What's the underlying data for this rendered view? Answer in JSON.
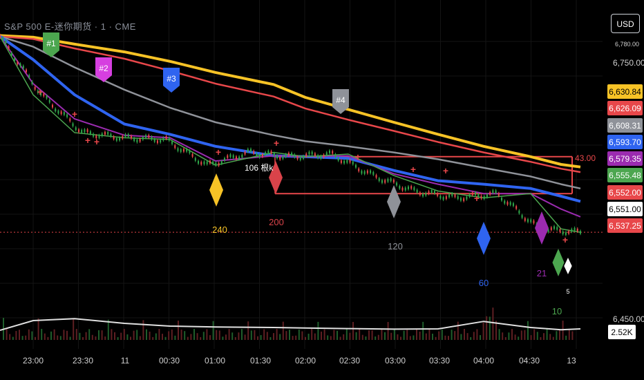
{
  "header": {
    "title": "S&P 500 E-迷你期货 · 1 · CME",
    "currency_button": "USD"
  },
  "axis_labels": {
    "top_tiny": "6,780.00",
    "p6750": "6,750.00",
    "p6450": "6,450.00"
  },
  "price_badges": [
    {
      "text": "6,630.84",
      "bg": "#f7c326",
      "fg": "#000000"
    },
    {
      "text": "6,626.09",
      "bg": "#e8474a",
      "fg": "#ffffff"
    },
    {
      "text": "6,608.31",
      "bg": "#8f9299",
      "fg": "#ffffff"
    },
    {
      "text": "6,593.70",
      "bg": "#2f64f0",
      "fg": "#ffffff"
    },
    {
      "text": "6,579.35",
      "bg": "#9b2bb0",
      "fg": "#ffffff"
    },
    {
      "text": "6,555.48",
      "bg": "#4ca64f",
      "fg": "#ffffff"
    },
    {
      "text": "6,552.00",
      "bg": "#e8474a",
      "fg": "#ffffff"
    },
    {
      "text": "6,551.00",
      "bg": "#ffffff",
      "fg": "#000000"
    },
    {
      "text": "6,537.25",
      "bg": "#e8474a",
      "fg": "#ffffff"
    }
  ],
  "volume_badge": "2.52K",
  "time_labels": [
    "23:00",
    "23:30",
    "11",
    "00:30",
    "01:00",
    "01:30",
    "02:00",
    "02:30",
    "03:00",
    "03:30",
    "04:00",
    "04:30",
    "13"
  ],
  "flags": [
    {
      "text": "#1",
      "color": "#4ca64f"
    },
    {
      "text": "#2",
      "color": "#d63fe0"
    },
    {
      "text": "#3",
      "color": "#2f64f0"
    },
    {
      "text": "#4",
      "color": "#8f9299"
    }
  ],
  "diamonds": [
    {
      "text": "240",
      "color": "#f7c326"
    },
    {
      "text": "200",
      "color": "#d9434a"
    },
    {
      "text": "120",
      "color": "#8f9299"
    },
    {
      "text": "60",
      "color": "#2f64f0"
    },
    {
      "text": "21",
      "color": "#9b2bb0"
    },
    {
      "text": "10",
      "color": "#4ca64f"
    },
    {
      "text": "5",
      "color": "#ffffff"
    }
  ],
  "annotations": {
    "bars_count": "106 根k",
    "range_value": "43.00"
  },
  "chart_data": {
    "type": "line",
    "x": [
      "22:50",
      "23:00",
      "23:30",
      "00:00",
      "00:30",
      "01:00",
      "01:30",
      "02:00",
      "02:30",
      "03:00",
      "03:30",
      "04:00",
      "04:30",
      "04:50",
      "05:00"
    ],
    "ylim": [
      6440,
      6790
    ],
    "series": [
      {
        "color": "#f7c326",
        "values": [
          6781,
          6779,
          6771,
          6762,
          6751,
          6738,
          6724,
          6709,
          6695,
          6680,
          6666,
          6652,
          6640,
          6631,
          6628
        ]
      },
      {
        "color": "#e8474a",
        "values": [
          6780,
          6777,
          6766,
          6754,
          6740,
          6725,
          6710,
          6696,
          6683,
          6670,
          6657,
          6645,
          6634,
          6626,
          6622
        ]
      },
      {
        "color": "#8f9299",
        "values": [
          6780,
          6768,
          6744,
          6718,
          6697,
          6680,
          6665,
          6658,
          6652,
          6645,
          6637,
          6627,
          6617,
          6608,
          6603
        ]
      },
      {
        "color": "#2f64f0",
        "values": [
          6780,
          6753,
          6712,
          6678,
          6666,
          6652,
          6641,
          6640,
          6638,
          6624,
          6612,
          6608,
          6603,
          6594,
          6588
        ]
      },
      {
        "color": "#9b2bb0",
        "values": [
          6780,
          6725,
          6684,
          6665,
          6662,
          6635,
          6641,
          6640,
          6641,
          6620,
          6608,
          6597,
          6597,
          6579,
          6570
        ]
      },
      {
        "color": "#4ca64f",
        "values": [
          6780,
          6712,
          6668,
          6662,
          6660,
          6630,
          6645,
          6640,
          6643,
          6618,
          6600,
          6592,
          6597,
          6556,
          6552
        ]
      }
    ],
    "volume": {
      "color": "#e0e0e0",
      "values": [
        0.3,
        0.65,
        0.72,
        0.55,
        0.45,
        0.42,
        0.4,
        0.38,
        0.36,
        0.34,
        0.35,
        0.62,
        0.4,
        0.32,
        0.35
      ]
    },
    "levels": {
      "upper": 6640,
      "lower": 6597
    },
    "last_price": 6552
  }
}
